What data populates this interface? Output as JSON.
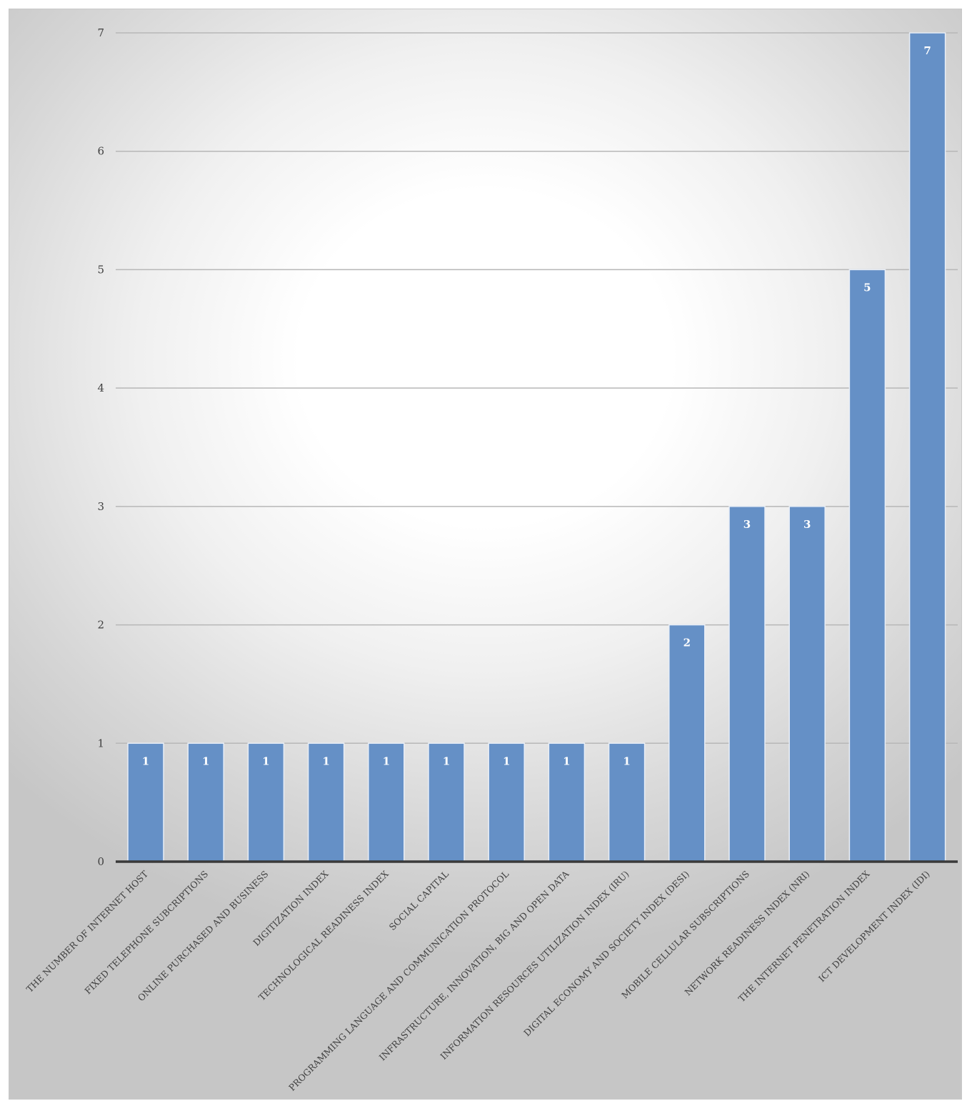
{
  "chart_data": {
    "type": "bar",
    "title": "",
    "xlabel": "",
    "ylabel": "",
    "ylim": [
      0,
      7
    ],
    "yticks": [
      0,
      1,
      2,
      3,
      4,
      5,
      6,
      7
    ],
    "grid": true,
    "legend": "none",
    "bar_color": "#6590c6",
    "categories": [
      "THE NUMBER OF INTERNET HOST",
      "FIXED TELEPHONE SUBCRIPTIONS",
      "ONLINE PURCHASED AND BUSINESS",
      "DIGITIZATION INDEX",
      "TECHNOLOGICAL READINESS INDEX",
      "SOCIAL CAPITAL",
      "PROGRAMMING LANGUAGE AND COMMUNICATION PROTOCOL",
      "INFRASTRUCTURE, INNOVATION, BIG AND OPEN DATA",
      "INFORMATION RESOURCES UTILIZATION INDEX (IRU)",
      "DIGITAL ECONOMY AND SOCIETY INDEX (DESI)",
      "MOBILE CELLULAR SUBSCRIPTIONS",
      "NETWORK READINESS INDEX (NRI)",
      "THE INTERNET PENETRATION INDEX",
      "ICT DEVELOPMENT INDEX (IDI)"
    ],
    "values": [
      1,
      1,
      1,
      1,
      1,
      1,
      1,
      1,
      1,
      2,
      3,
      3,
      5,
      7
    ]
  }
}
